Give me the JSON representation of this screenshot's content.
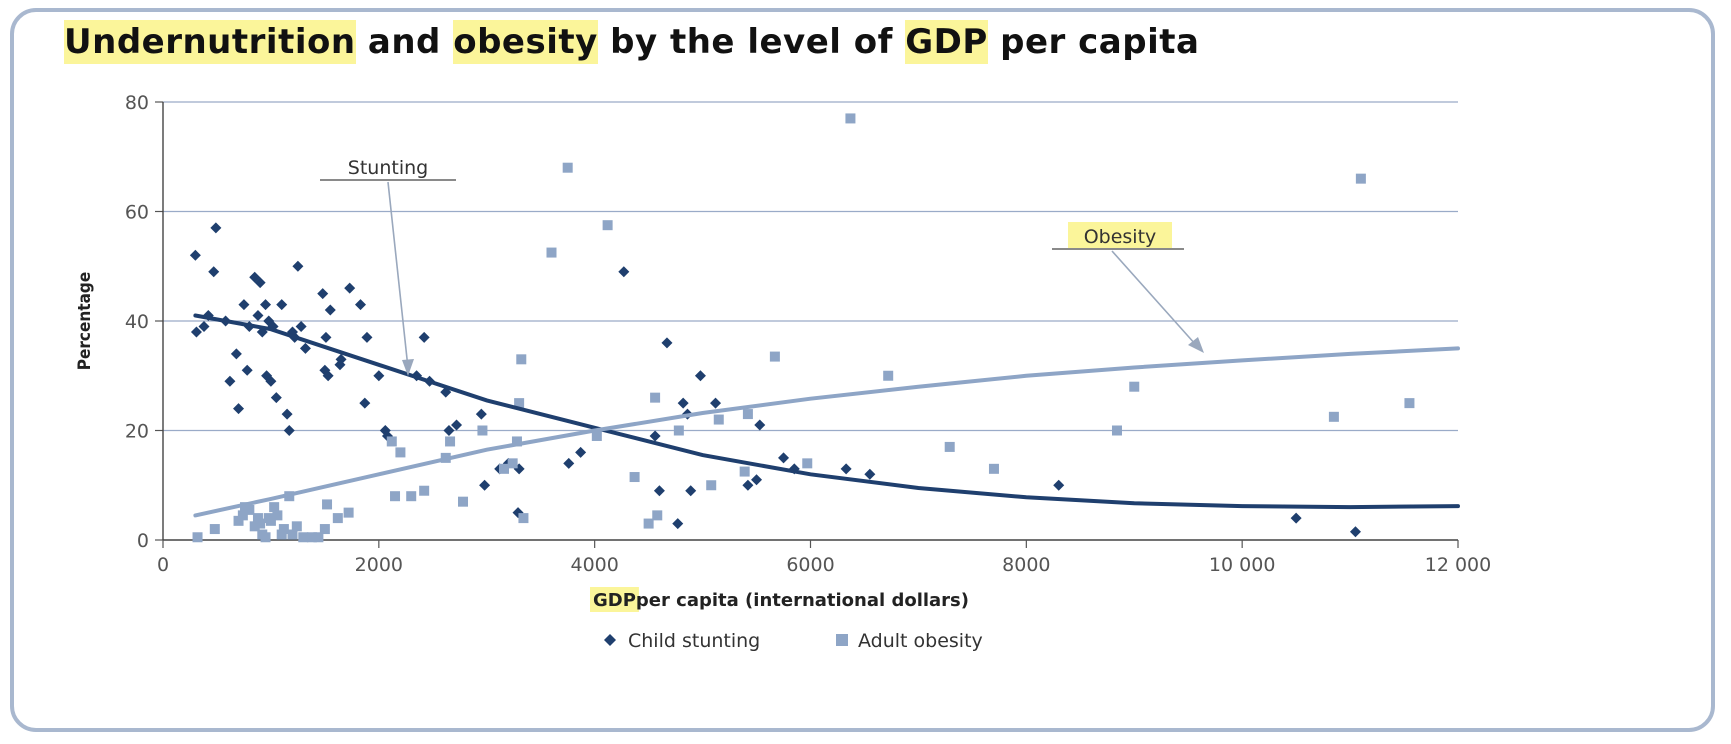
{
  "title_parts": [
    {
      "text": "Undernutrition",
      "highlight": true
    },
    {
      "text": " and ",
      "highlight": false
    },
    {
      "text": "obesity",
      "highlight": true
    },
    {
      "text": " by the level of ",
      "highlight": false
    },
    {
      "text": "GDP",
      "highlight": true
    },
    {
      "text": " per capita",
      "highlight": false
    }
  ],
  "colors": {
    "stunting": "#1f3f6e",
    "obesity": "#8ea5c6",
    "grid": "#9aabc8",
    "highlight": "#fbf59a",
    "frame": "#a9b8cf"
  },
  "chart_data": {
    "type": "scatter",
    "title": "Undernutrition and obesity by the level of GDP per capita",
    "xlabel_parts": [
      {
        "text": "GDP",
        "highlight": true
      },
      {
        "text": " per capita (international dollars)",
        "highlight": false
      }
    ],
    "ylabel": "Percentage",
    "xlim": [
      0,
      12000
    ],
    "ylim": [
      0,
      80
    ],
    "x_ticks": [
      {
        "value": 0,
        "label": "0"
      },
      {
        "value": 2000,
        "label": "2000"
      },
      {
        "value": 4000,
        "label": "4000"
      },
      {
        "value": 6000,
        "label": "6000"
      },
      {
        "value": 8000,
        "label": "8000"
      },
      {
        "value": 10000,
        "label": "10 000"
      },
      {
        "value": 12000,
        "label": "12 000"
      }
    ],
    "y_ticks": [
      {
        "value": 0,
        "label": "0"
      },
      {
        "value": 20,
        "label": "20"
      },
      {
        "value": 40,
        "label": "40"
      },
      {
        "value": 60,
        "label": "60"
      },
      {
        "value": 80,
        "label": "80"
      }
    ],
    "grid": "horizontal",
    "legend_position": "bottom",
    "series": [
      {
        "name": "Child stunting",
        "marker": "diamond",
        "points": [
          [
            300,
            52
          ],
          [
            310,
            38
          ],
          [
            380,
            39
          ],
          [
            420,
            41
          ],
          [
            470,
            49
          ],
          [
            490,
            57
          ],
          [
            580,
            40
          ],
          [
            620,
            29
          ],
          [
            680,
            34
          ],
          [
            700,
            24
          ],
          [
            750,
            43
          ],
          [
            780,
            31
          ],
          [
            800,
            39
          ],
          [
            850,
            48
          ],
          [
            880,
            41
          ],
          [
            900,
            47
          ],
          [
            920,
            38
          ],
          [
            950,
            43
          ],
          [
            960,
            30
          ],
          [
            980,
            40
          ],
          [
            1000,
            29
          ],
          [
            1020,
            39
          ],
          [
            1050,
            26
          ],
          [
            1100,
            43
          ],
          [
            1150,
            23
          ],
          [
            1170,
            20
          ],
          [
            1200,
            38
          ],
          [
            1220,
            37
          ],
          [
            1250,
            50
          ],
          [
            1280,
            39
          ],
          [
            1320,
            35
          ],
          [
            1480,
            45
          ],
          [
            1500,
            31
          ],
          [
            1510,
            37
          ],
          [
            1530,
            30
          ],
          [
            1550,
            42
          ],
          [
            1640,
            32
          ],
          [
            1650,
            33
          ],
          [
            1730,
            46
          ],
          [
            1830,
            43
          ],
          [
            1870,
            25
          ],
          [
            1890,
            37
          ],
          [
            2000,
            30
          ],
          [
            2060,
            20
          ],
          [
            2080,
            19
          ],
          [
            2350,
            30
          ],
          [
            2420,
            37
          ],
          [
            2470,
            29
          ],
          [
            2620,
            27
          ],
          [
            2650,
            20
          ],
          [
            2720,
            21
          ],
          [
            2950,
            23
          ],
          [
            2980,
            10
          ],
          [
            3120,
            13
          ],
          [
            3200,
            14
          ],
          [
            3290,
            5
          ],
          [
            3300,
            13
          ],
          [
            3760,
            14
          ],
          [
            3870,
            16
          ],
          [
            4270,
            49
          ],
          [
            4560,
            19
          ],
          [
            4600,
            9
          ],
          [
            4670,
            36
          ],
          [
            4770,
            3
          ],
          [
            4820,
            25
          ],
          [
            4860,
            23
          ],
          [
            4890,
            9
          ],
          [
            4980,
            30
          ],
          [
            5120,
            25
          ],
          [
            5420,
            10
          ],
          [
            5500,
            11
          ],
          [
            5530,
            21
          ],
          [
            5750,
            15
          ],
          [
            5850,
            13
          ],
          [
            6330,
            13
          ],
          [
            6550,
            12
          ],
          [
            8300,
            10
          ],
          [
            10500,
            4
          ],
          [
            11050,
            1.5
          ]
        ],
        "trend": [
          [
            300,
            41
          ],
          [
            1000,
            38.5
          ],
          [
            2000,
            32
          ],
          [
            3000,
            25.5
          ],
          [
            4000,
            20.5
          ],
          [
            5000,
            15.5
          ],
          [
            6000,
            12.0
          ],
          [
            7000,
            9.5
          ],
          [
            8000,
            7.8
          ],
          [
            9000,
            6.7
          ],
          [
            10000,
            6.2
          ],
          [
            11000,
            6.0
          ],
          [
            12000,
            6.2
          ]
        ]
      },
      {
        "name": "Adult obesity",
        "marker": "square",
        "points": [
          [
            320,
            0.5
          ],
          [
            480,
            2
          ],
          [
            700,
            3.5
          ],
          [
            740,
            4.5
          ],
          [
            760,
            6
          ],
          [
            800,
            5.5
          ],
          [
            850,
            2.5
          ],
          [
            880,
            4
          ],
          [
            900,
            3
          ],
          [
            920,
            1
          ],
          [
            950,
            0.5
          ],
          [
            980,
            4
          ],
          [
            1000,
            3.5
          ],
          [
            1030,
            6
          ],
          [
            1060,
            4.5
          ],
          [
            1100,
            1
          ],
          [
            1120,
            2
          ],
          [
            1170,
            8
          ],
          [
            1200,
            1
          ],
          [
            1240,
            2.5
          ],
          [
            1300,
            0.5
          ],
          [
            1380,
            0.5
          ],
          [
            1440,
            0.5
          ],
          [
            1500,
            2
          ],
          [
            1520,
            6.5
          ],
          [
            1620,
            4
          ],
          [
            1720,
            5
          ],
          [
            2120,
            18
          ],
          [
            2150,
            8
          ],
          [
            2200,
            16
          ],
          [
            2300,
            8
          ],
          [
            2420,
            9
          ],
          [
            2620,
            15
          ],
          [
            2660,
            18
          ],
          [
            2780,
            7
          ],
          [
            2960,
            20
          ],
          [
            3160,
            13
          ],
          [
            3240,
            14
          ],
          [
            3280,
            18
          ],
          [
            3300,
            25
          ],
          [
            3320,
            33
          ],
          [
            3340,
            4
          ],
          [
            3600,
            52.5
          ],
          [
            3750,
            68
          ],
          [
            4020,
            19
          ],
          [
            4120,
            57.5
          ],
          [
            4370,
            11.5
          ],
          [
            4500,
            3
          ],
          [
            4560,
            26
          ],
          [
            4580,
            4.5
          ],
          [
            4780,
            20
          ],
          [
            5080,
            10
          ],
          [
            5150,
            22
          ],
          [
            5390,
            12.5
          ],
          [
            5420,
            23
          ],
          [
            5670,
            33.5
          ],
          [
            5970,
            14
          ],
          [
            6370,
            77
          ],
          [
            6720,
            30
          ],
          [
            7290,
            17
          ],
          [
            7700,
            13
          ],
          [
            8840,
            20
          ],
          [
            9000,
            28
          ],
          [
            10850,
            22.5
          ],
          [
            11100,
            66
          ],
          [
            11550,
            25
          ]
        ],
        "trend": [
          [
            300,
            4.5
          ],
          [
            1000,
            7.5
          ],
          [
            2000,
            12.0
          ],
          [
            3000,
            16.5
          ],
          [
            4000,
            20.0
          ],
          [
            5000,
            23.2
          ],
          [
            6000,
            25.8
          ],
          [
            7000,
            28.0
          ],
          [
            8000,
            30.0
          ],
          [
            9000,
            31.5
          ],
          [
            10000,
            32.8
          ],
          [
            11000,
            34.0
          ],
          [
            12000,
            35.0
          ]
        ]
      }
    ],
    "annotations": [
      {
        "text": "Stunting",
        "target_series": "Child stunting",
        "highlight": false
      },
      {
        "text": "Obesity",
        "target_series": "Adult obesity",
        "highlight": true
      }
    ]
  }
}
